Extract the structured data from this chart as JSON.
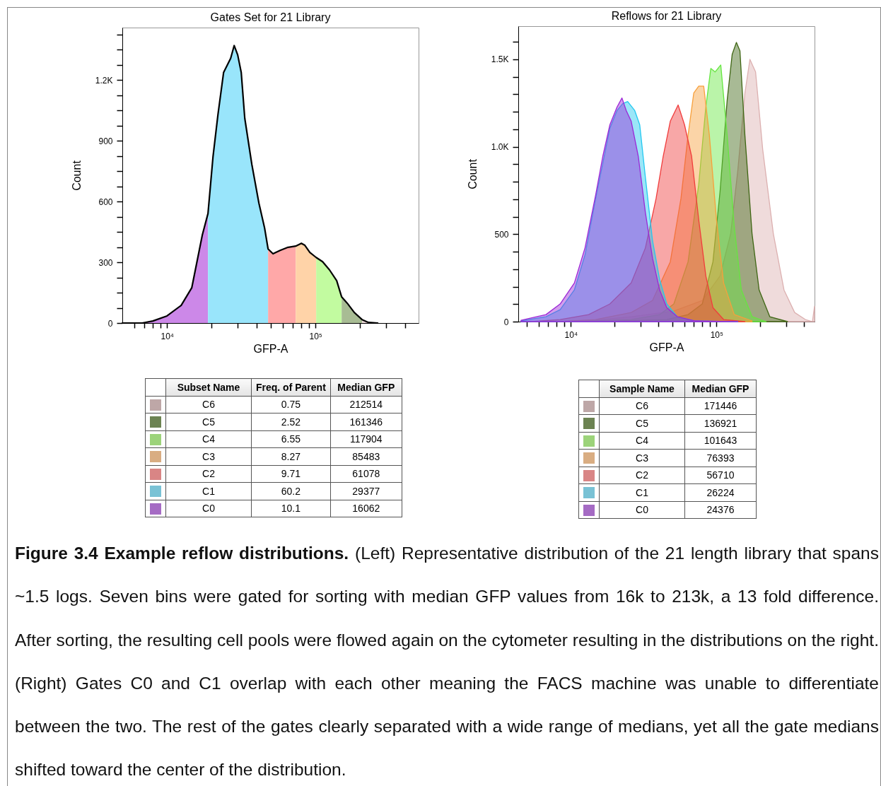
{
  "chart_data": [
    {
      "type": "area",
      "title": "Gates Set for 21 Library",
      "xlabel": "GFP-A",
      "ylabel": "Count",
      "log": "x",
      "xlim": [
        5000,
        495000
      ],
      "xticks": [
        {
          "value": 6000,
          "label": null
        },
        {
          "value": 7000,
          "label": null
        },
        {
          "value": 8000,
          "label": null
        },
        {
          "value": 9000,
          "label": null
        },
        {
          "value": 10000,
          "label": "10⁴"
        },
        {
          "value": 20000,
          "label": null
        },
        {
          "value": 30000,
          "label": null
        },
        {
          "value": 40000,
          "label": null
        },
        {
          "value": 50000,
          "label": null
        },
        {
          "value": 60000,
          "label": null
        },
        {
          "value": 70000,
          "label": null
        },
        {
          "value": 80000,
          "label": null
        },
        {
          "value": 90000,
          "label": null
        },
        {
          "value": 100000,
          "label": "10⁵"
        },
        {
          "value": 200000,
          "label": null
        },
        {
          "value": 300000,
          "label": null
        },
        {
          "value": 400000,
          "label": null
        }
      ],
      "ylim": [
        0,
        1460
      ],
      "yticks": [
        0,
        {
          "value": 75,
          "label": null
        },
        {
          "value": 150,
          "label": null
        },
        {
          "value": 225,
          "label": null
        },
        300,
        {
          "value": 375,
          "label": null
        },
        {
          "value": 450,
          "label": null
        },
        {
          "value": 525,
          "label": null
        },
        600,
        {
          "value": 675,
          "label": null
        },
        {
          "value": 750,
          "label": null
        },
        {
          "value": 825,
          "label": null
        },
        900,
        {
          "value": 975,
          "label": null
        },
        {
          "value": 1050,
          "label": null
        },
        {
          "value": 1125,
          "label": null
        },
        {
          "value": 1200,
          "label": "1.2K"
        },
        {
          "value": 1275,
          "label": null
        },
        {
          "value": 1350,
          "label": null
        },
        {
          "value": 1425,
          "label": null
        }
      ],
      "series": [
        {
          "color": "#cc88e8",
          "x": [
            5000,
            5780,
            6810,
            8030,
            10000,
            12450,
            14680,
            17300,
            18880
          ],
          "values": [
            0,
            0,
            0,
            10,
            35,
            87,
            174,
            436,
            541
          ]
        },
        {
          "color": "#99e5fb",
          "x": [
            18880,
            20400,
            22030,
            24050,
            25410,
            26840,
            28340,
            29930,
            31620,
            33400,
            37250,
            41580,
            45390,
            47960
          ],
          "values": [
            541,
            820,
            1029,
            1238,
            1273,
            1308,
            1371,
            1325,
            1238,
            1012,
            785,
            593,
            471,
            366
          ]
        },
        {
          "color": "#ffa8a8",
          "x": [
            47960,
            51760,
            57800,
            64520,
            73620
          ],
          "values": [
            366,
            342,
            359,
            373,
            380
          ]
        },
        {
          "color": "#ffd3a8",
          "x": [
            73620,
            80350,
            84860,
            91650,
            101100
          ],
          "values": [
            380,
            394,
            384,
            349,
            324
          ]
        },
        {
          "color": "#c2fba0",
          "x": [
            101100,
            111700,
            124500,
            139000,
            150100
          ],
          "values": [
            324,
            303,
            262,
            209,
            129
          ]
        },
        {
          "color": "#a8bc94",
          "x": [
            150100,
            163700,
            182700,
            206100
          ],
          "values": [
            129,
            98,
            52,
            17
          ]
        },
        {
          "color": "#ecd8d8",
          "x": [
            206100,
            227600,
            262500
          ],
          "values": [
            17,
            3,
            0
          ]
        },
        {
          "type": "line",
          "color": "#000000",
          "x": [
            5000,
            5780,
            6810,
            8030,
            10000,
            12450,
            14680,
            17300,
            18880,
            20400,
            22030,
            24050,
            25410,
            26840,
            28340,
            29930,
            31620,
            33400,
            37250,
            41580,
            45390,
            47960,
            51760,
            57800,
            64520,
            73620,
            80350,
            84860,
            91650,
            101100,
            111700,
            124500,
            139000,
            150100,
            163700,
            182700,
            206100,
            227600,
            262500
          ],
          "values": [
            0,
            0,
            0,
            10,
            35,
            87,
            174,
            436,
            541,
            820,
            1029,
            1238,
            1273,
            1308,
            1371,
            1325,
            1238,
            1012,
            785,
            593,
            471,
            366,
            342,
            359,
            373,
            380,
            394,
            384,
            349,
            324,
            303,
            262,
            209,
            129,
            98,
            52,
            17,
            3,
            0
          ]
        }
      ]
    },
    {
      "type": "other",
      "xlabel": "Subset Name",
      "categories": [
        "C6",
        "C5",
        "C4",
        "C3",
        "C2",
        "C1",
        "C0"
      ],
      "colors": [
        "#e0c4c4",
        "#7f9a60",
        "#b8f890",
        "#ffcc99",
        "#ff9c9c",
        "#8ee4fa",
        "#c27ee6"
      ],
      "data_labels": true,
      "series": [
        {
          "name": "Freq. of Parent",
          "values": [
            0.75,
            2.52,
            6.55,
            8.27,
            9.71,
            60.2,
            10.1
          ]
        },
        {
          "name": "Median GFP",
          "values": [
            212514,
            161346,
            117904,
            85483,
            61078,
            29377,
            16062
          ]
        }
      ]
    },
    {
      "type": "area",
      "title": "Reflows for 21 Library",
      "xlabel": "GFP-A",
      "ylabel": "Count",
      "log": "x",
      "xlim": [
        4360,
        471000
      ],
      "xticks": [
        {
          "value": 5000,
          "label": null
        },
        {
          "value": 6000,
          "label": null
        },
        {
          "value": 7000,
          "label": null
        },
        {
          "value": 8000,
          "label": null
        },
        {
          "value": 9000,
          "label": null
        },
        {
          "value": 10000,
          "label": "10⁴"
        },
        {
          "value": 20000,
          "label": null
        },
        {
          "value": 30000,
          "label": null
        },
        {
          "value": 40000,
          "label": null
        },
        {
          "value": 50000,
          "label": null
        },
        {
          "value": 60000,
          "label": null
        },
        {
          "value": 70000,
          "label": null
        },
        {
          "value": 80000,
          "label": null
        },
        {
          "value": 90000,
          "label": null
        },
        {
          "value": 100000,
          "label": "10⁵"
        },
        {
          "value": 200000,
          "label": null
        },
        {
          "value": 300000,
          "label": null
        },
        {
          "value": 400000,
          "label": null
        }
      ],
      "ylim": [
        0,
        1690
      ],
      "yticks": [
        0,
        {
          "value": 100,
          "label": null
        },
        {
          "value": 200,
          "label": null
        },
        {
          "value": 300,
          "label": null
        },
        {
          "value": 400,
          "label": null
        },
        500,
        {
          "value": 600,
          "label": null
        },
        {
          "value": 700,
          "label": null
        },
        {
          "value": 800,
          "label": null
        },
        {
          "value": 900,
          "label": null
        },
        {
          "value": 1000,
          "label": "1.0K"
        },
        {
          "value": 1100,
          "label": null
        },
        {
          "value": 1200,
          "label": null
        },
        {
          "value": 1300,
          "label": null
        },
        {
          "value": 1400,
          "label": null
        },
        {
          "value": 1500,
          "label": "1.5K"
        },
        {
          "value": 1600,
          "label": null
        }
      ],
      "series": [
        {
          "color": "#dcb0b0",
          "x": [
            11840,
            25980,
            50970,
            79880,
            105800,
            125200,
            140100,
            156700,
            169600,
            185500,
            207600,
            245600,
            290700,
            344000,
            407200,
            455500,
            471000
          ],
          "values": [
            0,
            28,
            60,
            121,
            261,
            503,
            865,
            1307,
            1500,
            1428,
            985,
            503,
            181,
            52,
            12,
            0,
            88
          ]
        },
        {
          "color": "#3f6614",
          "x": [
            14810,
            45550,
            63810,
            79880,
            94540,
            105800,
            118400,
            128100,
            137000,
            144900,
            156700,
            175400,
            196200,
            232200,
            307400
          ],
          "values": [
            0,
            12,
            40,
            101,
            342,
            744,
            1267,
            1528,
            1597,
            1548,
            1066,
            503,
            181,
            28,
            0
          ]
        },
        {
          "color": "#66e640",
          "x": [
            10580,
            25980,
            40720,
            50970,
            63810,
            75510,
            84490,
            91410,
            97770,
            107000,
            118400,
            132400,
            148100,
            175400,
            219600
          ],
          "values": [
            0,
            12,
            40,
            101,
            342,
            784,
            1227,
            1448,
            1428,
            1468,
            1066,
            543,
            181,
            28,
            0
          ]
        },
        {
          "color": "#f7a03c",
          "x": [
            8450,
            14810,
            25980,
            36390,
            48180,
            57030,
            63810,
            69810,
            75510,
            81700,
            89370,
            100000,
            111900,
            132400,
            175400
          ],
          "values": [
            0,
            12,
            52,
            121,
            342,
            704,
            1066,
            1307,
            1347,
            1347,
            1066,
            583,
            221,
            40,
            4
          ]
        },
        {
          "color": "#f03c3c",
          "x": [
            5390,
            8450,
            13240,
            18550,
            25980,
            32520,
            38490,
            43060,
            48180,
            54530,
            60330,
            67500,
            75510,
            84490,
            94540,
            111900,
            156700
          ],
          "values": [
            0,
            12,
            40,
            101,
            221,
            422,
            704,
            945,
            1146,
            1239,
            1126,
            945,
            583,
            261,
            80,
            12,
            0
          ]
        },
        {
          "color": "#22c8f0",
          "x": [
            4555,
            6750,
            8450,
            10580,
            12520,
            14810,
            16580,
            18550,
            20760,
            22710,
            24560,
            27480,
            29730,
            32520,
            36390,
            40720,
            45550,
            53910,
            71410,
            140100
          ],
          "values": [
            4,
            28,
            68,
            181,
            382,
            704,
            905,
            1106,
            1207,
            1247,
            1259,
            1207,
            1126,
            825,
            463,
            241,
            101,
            28,
            4,
            0
          ]
        },
        {
          "color": "#9c27d6",
          "x": [
            4555,
            6750,
            8450,
            10580,
            12520,
            14810,
            16580,
            18550,
            20760,
            22450,
            24020,
            25980,
            29070,
            32520,
            36390,
            40720,
            45550,
            53910,
            71410,
            140100
          ],
          "values": [
            8,
            40,
            101,
            221,
            422,
            724,
            945,
            1126,
            1227,
            1279,
            1207,
            1146,
            945,
            623,
            362,
            181,
            80,
            28,
            4,
            0
          ]
        }
      ]
    },
    {
      "type": "other",
      "xlabel": "Sample Name",
      "categories": [
        "C6",
        "C5",
        "C4",
        "C3",
        "C2",
        "C1",
        "C0"
      ],
      "colors": [
        "#e0c4c4",
        "#7f9a60",
        "#b8f890",
        "#ffcc99",
        "#ff9c9c",
        "#8ee4fa",
        "#c27ee6"
      ],
      "data_labels": true,
      "series": [
        {
          "name": "Median GFP",
          "values": [
            171446,
            136921,
            101643,
            76393,
            56710,
            26224,
            24376
          ]
        }
      ],
      "annotations": [
        "Figure 3.4 Example reflow distributions.",
        "(Left) Representative distribution of the 21 length library that spans ~1.5 logs. Seven bins were gated for sorting with median GFP values from 16k to 213k, a 13 fold difference. After sorting, the resulting cell pools were flowed again on the cytometer resulting in the distributions on the right. (Right) Gates C0 and C1 overlap with each other meaning the FACS machine was unable to differentiate between the two. The rest of the gates clearly separated with a wide range of medians, yet all the gate medians shifted toward the center of the distribution."
      ]
    }
  ]
}
